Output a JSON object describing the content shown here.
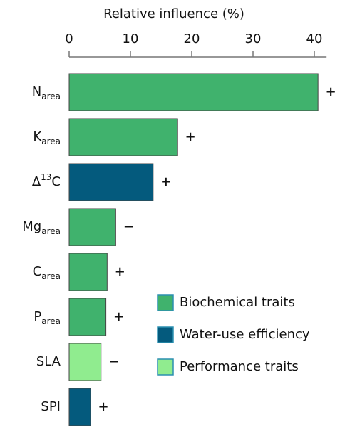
{
  "chart_data": {
    "type": "bar",
    "orientation": "horizontal",
    "x_label": "Relative influence (%)",
    "categories": [
      [
        {
          "text": "N"
        },
        {
          "text": "area",
          "shift": "sub"
        }
      ],
      [
        {
          "text": "K"
        },
        {
          "text": "area",
          "shift": "sub"
        }
      ],
      [
        {
          "text": "Δ"
        },
        {
          "text": "13",
          "shift": "super"
        },
        {
          "text": "C"
        }
      ],
      [
        {
          "text": "Mg"
        },
        {
          "text": "area",
          "shift": "sub"
        }
      ],
      [
        {
          "text": "C"
        },
        {
          "text": "area",
          "shift": "sub"
        }
      ],
      [
        {
          "text": "P"
        },
        {
          "text": "area",
          "shift": "sub"
        }
      ],
      [
        {
          "text": "SLA"
        }
      ],
      [
        {
          "text": "SPI"
        }
      ]
    ],
    "series": [
      {
        "name": "Biochemical traits",
        "color": "#40b26d",
        "values": [
          40.6,
          17.7,
          null,
          7.6,
          6.2,
          6.0,
          null,
          null
        ]
      },
      {
        "name": "Water-use efficiency",
        "color": "#045a7d",
        "values": [
          null,
          null,
          13.7,
          null,
          null,
          null,
          null,
          3.5
        ]
      },
      {
        "name": "Performance traits",
        "color": "#90ec8f",
        "values": [
          null,
          null,
          null,
          null,
          null,
          null,
          5.2,
          null
        ]
      }
    ],
    "annotations": [
      "+",
      "+",
      "+",
      "−",
      "+",
      "+",
      "−",
      "+"
    ],
    "xlim": [
      0,
      42
    ],
    "xticks": [
      0,
      10,
      20,
      30,
      40
    ]
  }
}
